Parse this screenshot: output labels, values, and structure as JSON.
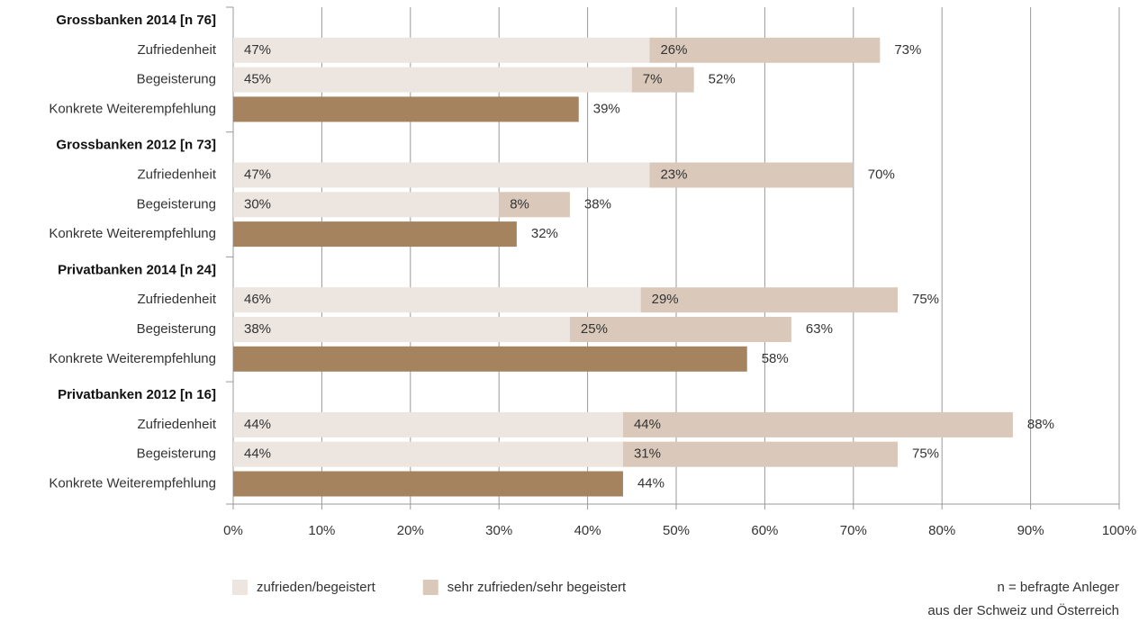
{
  "chart_data": {
    "type": "stacked-bar-horizontal",
    "groups": [
      {
        "name": "Grossbanken 2014 [n 76]",
        "categories": [
          "Zufriedenheit",
          "Begeisterung",
          "Konkrete Weiterempfehlung"
        ]
      },
      {
        "name": "Grossbanken 2012 [n 73]",
        "categories": [
          "Zufriedenheit",
          "Begeisterung",
          "Konkrete Weiterempfehlung"
        ]
      },
      {
        "name": "Privatbanken 2014 [n 24]",
        "categories": [
          "Zufriedenheit",
          "Begeisterung",
          "Konkrete Weiterempfehlung"
        ]
      },
      {
        "name": "Privatbanken 2012 [n 16]",
        "categories": [
          "Zufriedenheit",
          "Begeisterung",
          "Konkrete Weiterempfehlung"
        ]
      }
    ],
    "series": [
      {
        "name": "zufrieden/begeistert",
        "color": "#ede5df",
        "label_position": "inside",
        "values": [
          [
            47,
            45,
            null
          ],
          [
            47,
            30,
            null
          ],
          [
            46,
            38,
            null
          ],
          [
            44,
            44,
            null
          ]
        ],
        "value_labels": [
          [
            "47%",
            "45%",
            null
          ],
          [
            "47%",
            "30%",
            null
          ],
          [
            "46%",
            "38%",
            null
          ],
          [
            "44%",
            "44%",
            null
          ]
        ]
      },
      {
        "name": "sehr zufrieden/sehr begeistert",
        "color": "#dac9ba",
        "label_position": "inside",
        "values": [
          [
            26,
            7,
            null
          ],
          [
            23,
            8,
            null
          ],
          [
            29,
            25,
            null
          ],
          [
            44,
            31,
            null
          ]
        ],
        "value_labels": [
          [
            "26%",
            "7%",
            null
          ],
          [
            "23%",
            "8%",
            null
          ],
          [
            "29%",
            "25%",
            null
          ],
          [
            "44%",
            "31%",
            null
          ]
        ]
      },
      {
        "color": "#a5835f",
        "label_position": "outside",
        "values": [
          [
            null,
            null,
            39
          ],
          [
            null,
            null,
            32
          ],
          [
            null,
            null,
            58
          ],
          [
            null,
            null,
            44
          ]
        ],
        "value_labels": [
          [
            null,
            null,
            "39%"
          ],
          [
            null,
            null,
            "32%"
          ],
          [
            null,
            null,
            "58%"
          ],
          [
            null,
            null,
            "44%"
          ]
        ]
      }
    ],
    "totals": {
      "values": [
        [
          73,
          52,
          null
        ],
        [
          70,
          38,
          null
        ],
        [
          75,
          63,
          null
        ],
        [
          88,
          75,
          null
        ]
      ],
      "value_labels": [
        [
          "73%",
          "52%",
          null
        ],
        [
          "70%",
          "38%",
          null
        ],
        [
          "75%",
          "63%",
          null
        ],
        [
          "88%",
          "75%",
          null
        ]
      ]
    },
    "xlim": [
      0,
      100
    ],
    "xticks": [
      {
        "value": 0,
        "label": "0%"
      },
      {
        "value": 10,
        "label": "10%"
      },
      {
        "value": 20,
        "label": "20%"
      },
      {
        "value": 30,
        "label": "30%"
      },
      {
        "value": 40,
        "label": "40%"
      },
      {
        "value": 50,
        "label": "50%"
      },
      {
        "value": 60,
        "label": "60%"
      },
      {
        "value": 70,
        "label": "70%"
      },
      {
        "value": 80,
        "label": "80%"
      },
      {
        "value": 90,
        "label": "90%"
      },
      {
        "value": 100,
        "label": "100%"
      }
    ],
    "grid": true,
    "legend": "bottom-left",
    "notes": [
      "n = befragte Anleger",
      "aus der Schweiz und Österreich"
    ]
  }
}
